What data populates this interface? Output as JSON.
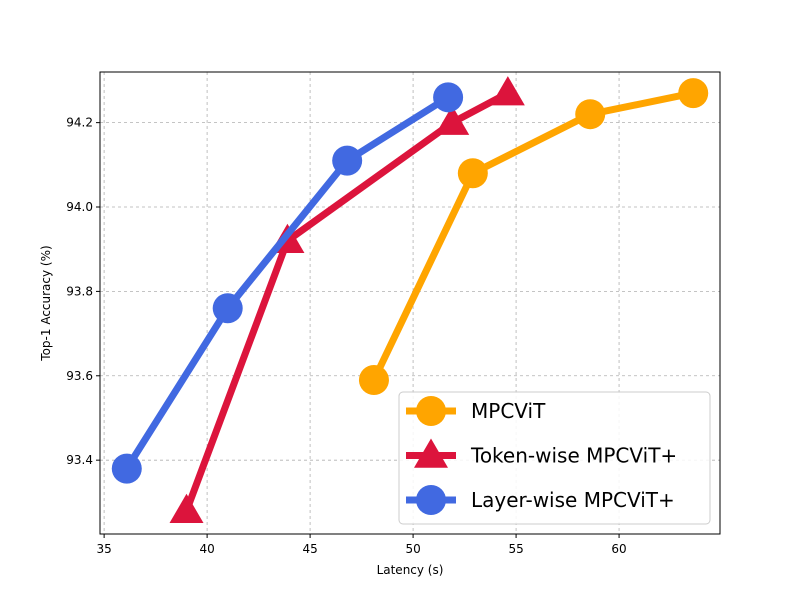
{
  "chart_data": {
    "type": "line",
    "title": "",
    "xlabel": "Latency (s)",
    "ylabel": "Top-1 Accuracy (%)",
    "xlim": [
      34.8,
      64.9
    ],
    "ylim": [
      93.225,
      94.32
    ],
    "xticks": [
      35,
      40,
      45,
      50,
      55,
      60
    ],
    "yticks": [
      93.4,
      93.6,
      93.8,
      94.0,
      94.2
    ],
    "xtick_labels": [
      "35",
      "40",
      "45",
      "50",
      "55",
      "60"
    ],
    "ytick_labels": [
      "93.4",
      "93.6",
      "93.8",
      "94.0",
      "94.2"
    ],
    "grid": true,
    "legend_position": "lower-right",
    "series": [
      {
        "name": "MPCViT",
        "color": "#FFA500",
        "marker": "circle",
        "x": [
          48.1,
          52.9,
          58.6,
          63.6
        ],
        "y": [
          93.59,
          94.08,
          94.22,
          94.27
        ]
      },
      {
        "name": "Token-wise MPCViT+",
        "color": "#DC143C",
        "marker": "triangle",
        "x": [
          39.0,
          43.9,
          51.9,
          54.6
        ],
        "y": [
          93.28,
          93.92,
          94.2,
          94.27
        ]
      },
      {
        "name": "Layer-wise MPCViT+",
        "color": "#4169E1",
        "marker": "circle",
        "x": [
          36.1,
          41.0,
          46.8,
          51.7
        ],
        "y": [
          93.38,
          93.76,
          94.11,
          94.26
        ]
      }
    ]
  }
}
